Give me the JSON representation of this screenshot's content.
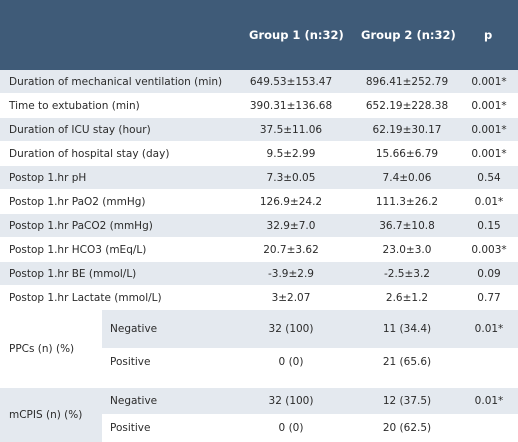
{
  "header": {
    "col1": "",
    "col2": "Group 1 (n:32)",
    "col3": "Group 2 (n:32)",
    "col4": "p"
  },
  "rows": [
    {
      "label": "Duration of mechanical ventilation (min)",
      "g1": "649.53±153.47",
      "g2": "896.41±252.79",
      "p": "0.001*"
    },
    {
      "label": "Time to extubation (min)",
      "g1": "390.31±136.68",
      "g2": "652.19±228.38",
      "p": "0.001*"
    },
    {
      "label": "Duration of ICU stay (hour)",
      "g1": "37.5±11.06",
      "g2": "62.19±30.17",
      "p": "0.001*"
    },
    {
      "label": "Duration of hospital stay (day)",
      "g1": "9.5±2.99",
      "g2": "15.66±6.79",
      "p": "0.001*"
    },
    {
      "label": "Postop 1.hr  pH",
      "g1": "7.3±0.05",
      "g2": "7.4±0.06",
      "p": "0.54"
    },
    {
      "label": "Postop 1.hr  PaO2 (mmHg)",
      "g1": "126.9±24.2",
      "g2": "111.3±26.2",
      "p": "0.01*"
    },
    {
      "label": "Postop 1.hr  PaCO2 (mmHg)",
      "g1": "32.9±7.0",
      "g2": "36.7±10.8",
      "p": "0.15"
    },
    {
      "label": "Postop 1.hr  HCO3 (mEq/L)",
      "g1": "20.7±3.62",
      "g2": "23.0±3.0",
      "p": "0.003*"
    },
    {
      "label": "Postop 1.hr  BE (mmol/L)",
      "g1": "-3.9±2.9",
      "g2": "-2.5±3.2",
      "p": "0.09"
    },
    {
      "label": "Postop 1.hr  Lactate (mmol/L)",
      "g1": "3±2.07",
      "g2": "2.6±1.2",
      "p": "0.77"
    }
  ],
  "groups": [
    {
      "label": "PPCs (n) (%)",
      "subrows": [
        {
          "sub": "Negative",
          "g1": "32 (100)",
          "g2": "11 (34.4)",
          "p": "0.01*"
        },
        {
          "sub": "Positive",
          "g1": "0 (0)",
          "g2": "21 (65.6)",
          "p": ""
        }
      ]
    },
    {
      "label": "mCPIS (n) (%)",
      "subrows": [
        {
          "sub": "Negative",
          "g1": "32 (100)",
          "g2": "12 (37.5)",
          "p": "0.01*"
        },
        {
          "sub": "Positive",
          "g1": "0 (0)",
          "g2": "20 (62.5)",
          "p": ""
        }
      ]
    }
  ]
}
